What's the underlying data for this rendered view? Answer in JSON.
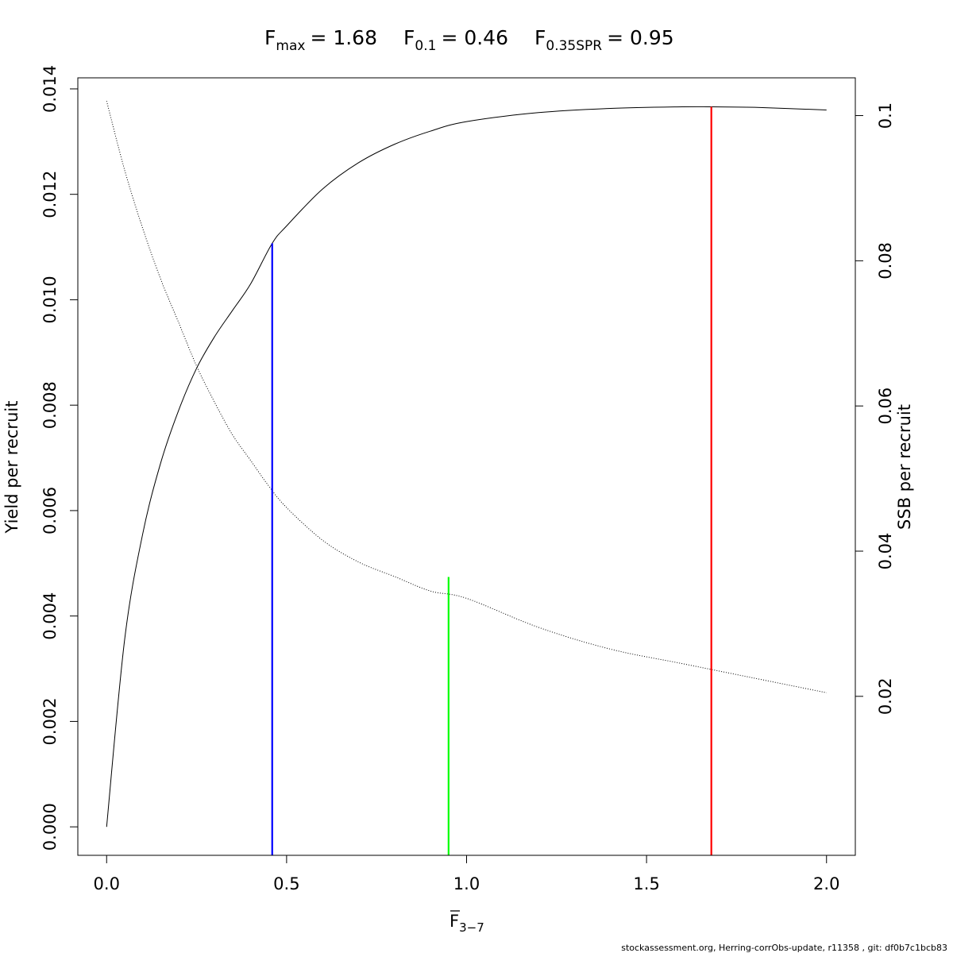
{
  "chart_data": {
    "type": "line",
    "title": {
      "fmax": {
        "base": "F",
        "sub": "max",
        "value": "= 1.68"
      },
      "f01": {
        "base": "F",
        "sub": "0.1",
        "value": "= 0.46"
      },
      "fspr": {
        "base": "F",
        "sub": "0.35SPR",
        "value": "= 0.95"
      }
    },
    "xlabel": {
      "base": "F",
      "sub": "3−7"
    },
    "ylabel_left": "Yield per recruit",
    "ylabel_right": "SSB per recruit",
    "xlim": [
      -0.08,
      2.08
    ],
    "ylim_left": [
      -0.00054,
      0.01421
    ],
    "ylim_right": [
      -0.0019,
      0.1052
    ],
    "x_ticks": [
      "0.0",
      "0.5",
      "1.0",
      "1.5",
      "2.0"
    ],
    "y_left_ticks": [
      "0.000",
      "0.002",
      "0.004",
      "0.006",
      "0.008",
      "0.010",
      "0.012",
      "0.014"
    ],
    "y_right_ticks": [
      "0.02",
      "0.04",
      "0.06",
      "0.08",
      "0.1"
    ],
    "grid": false,
    "series": [
      {
        "name": "Yield per recruit",
        "axis": "left",
        "style": "solid",
        "color": "#000000",
        "x": [
          0.0,
          0.05,
          0.1,
          0.15,
          0.2,
          0.25,
          0.3,
          0.35,
          0.4,
          0.46,
          0.5,
          0.6,
          0.7,
          0.8,
          0.9,
          1.0,
          1.2,
          1.4,
          1.6,
          1.68,
          1.8,
          2.0
        ],
        "y": [
          0.0,
          0.00355,
          0.00555,
          0.0069,
          0.0079,
          0.0087,
          0.0093,
          0.0098,
          0.0103,
          0.01107,
          0.0114,
          0.0121,
          0.0126,
          0.01295,
          0.0132,
          0.01338,
          0.01355,
          0.01363,
          0.01366,
          0.01366,
          0.01365,
          0.0136
        ]
      },
      {
        "name": "SSB per recruit",
        "axis": "right",
        "style": "dotted",
        "color": "#000000",
        "x": [
          0.0,
          0.05,
          0.1,
          0.15,
          0.2,
          0.25,
          0.3,
          0.35,
          0.4,
          0.45,
          0.5,
          0.6,
          0.7,
          0.8,
          0.9,
          1.0,
          1.2,
          1.4,
          1.6,
          1.8,
          2.0
        ],
        "y": [
          0.102,
          0.0925,
          0.0845,
          0.0775,
          0.0715,
          0.0655,
          0.0605,
          0.056,
          0.0525,
          0.049,
          0.046,
          0.0415,
          0.0385,
          0.0365,
          0.0345,
          0.0335,
          0.0295,
          0.0265,
          0.0245,
          0.0225,
          0.0205
        ]
      }
    ],
    "reference_lines": [
      {
        "name": "F0.1",
        "x": 0.46,
        "y_top": 0.01107,
        "color": "#0000ff"
      },
      {
        "name": "F0.35SPR",
        "x": 0.95,
        "y_top": 0.00474,
        "color": "#00ff00"
      },
      {
        "name": "Fmax",
        "x": 1.68,
        "y_top": 0.01366,
        "color": "#ff0000"
      }
    ]
  },
  "footer": "stockassessment.org, Herring-corrObs-update, r11358 , git: df0b7c1bcb83"
}
